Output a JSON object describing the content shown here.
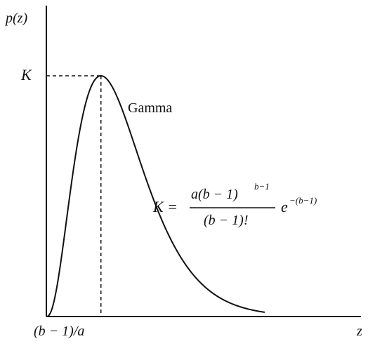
{
  "chart_data": {
    "type": "line",
    "title": "",
    "xlabel": "z",
    "ylabel": "p(z)",
    "series": [
      {
        "name": "Gamma",
        "shape_a": 1.0,
        "shape_b": 3.5,
        "x_range": [
          0,
          10
        ]
      }
    ],
    "annotations": {
      "peak_y_label": "K",
      "peak_x_label": "(b − 1)/a",
      "formula_lhs": "K = ",
      "formula_num_base": "a(b − 1)",
      "formula_num_exp": "b−1",
      "formula_den": "(b − 1)!",
      "formula_exp_base": "e",
      "formula_exp_exp": "−(b−1)"
    },
    "grid": false,
    "legend": "none"
  }
}
